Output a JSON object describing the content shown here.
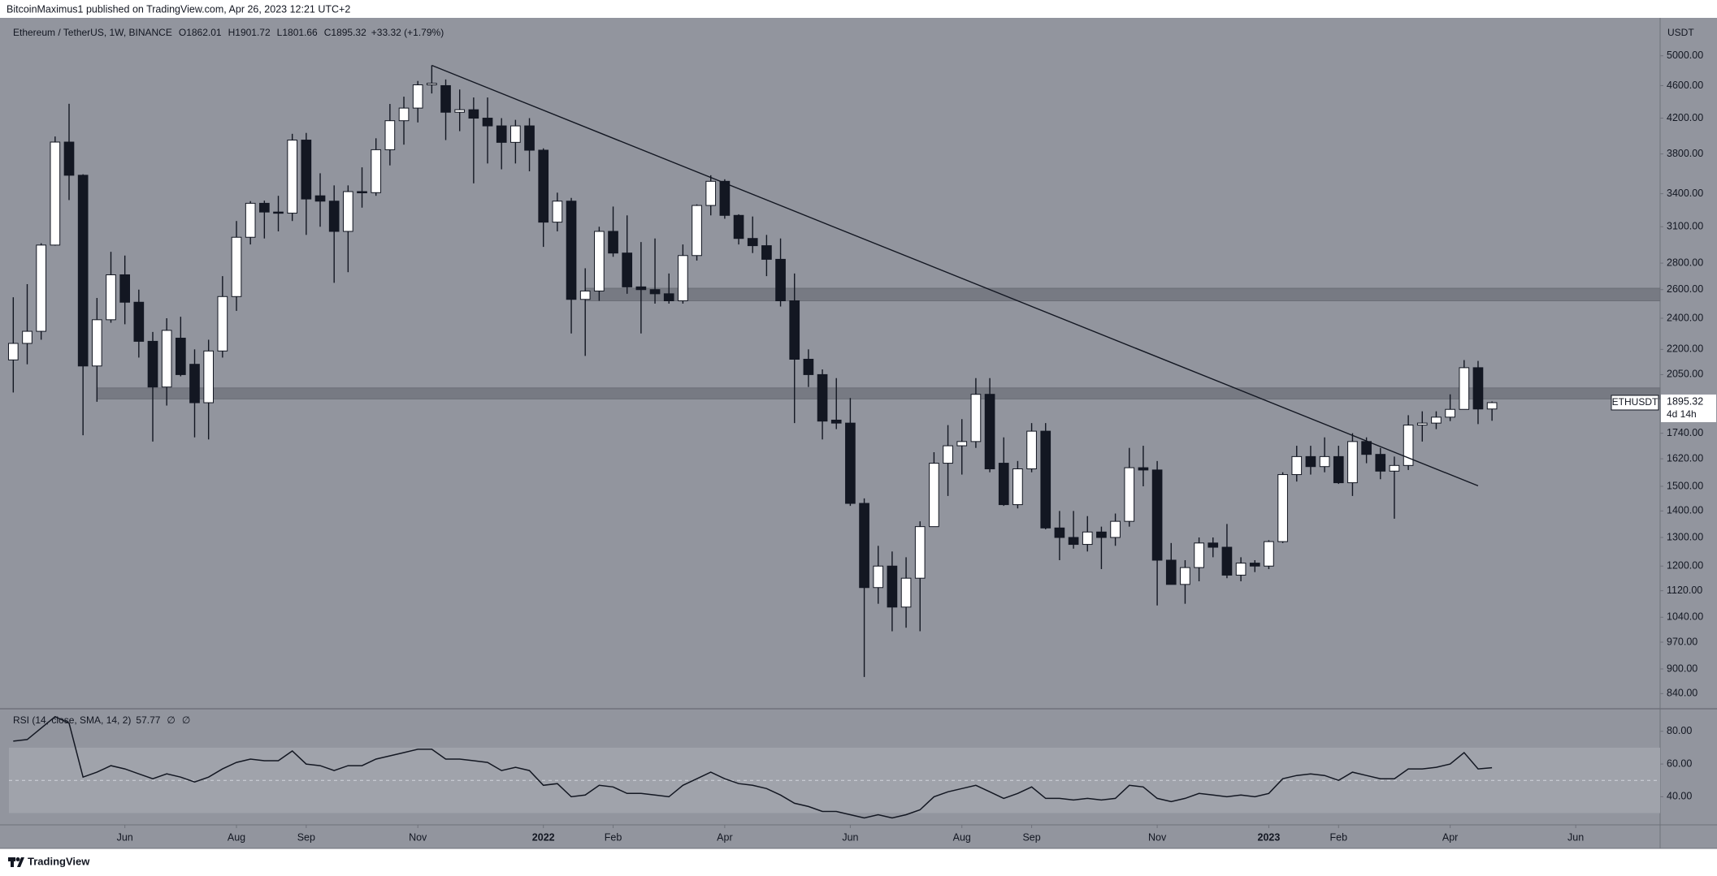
{
  "header": {
    "published": "BitcoinMaximus1 published on TradingView.com, Apr 26, 2023 12:21 UTC+2"
  },
  "footer": {
    "brand": "TradingView"
  },
  "chart_data": [
    {
      "type": "candlestick",
      "title": "Ethereum / TetherUS, 1W, BINANCE",
      "ohlc_labels": [
        "O",
        "H",
        "L",
        "C"
      ],
      "change": "+33.32 (+1.79%)",
      "currency": "USDT",
      "symbol": "ETHUSDT",
      "countdown": "4d 14h",
      "log_scale": true,
      "grid": false,
      "up_color": "#ffffff",
      "down_color": "#131722",
      "open": [
        2136,
        2237,
        2314,
        2945,
        3928,
        3580,
        2100,
        2390,
        2710,
        2510,
        2250,
        1980,
        2270,
        2110,
        1895,
        2190,
        2550,
        3010,
        3310,
        3230,
        3220,
        3950,
        3380,
        3330,
        3060,
        3420,
        3410,
        3845,
        4170,
        4320,
        4610,
        4600,
        4270,
        4300,
        4200,
        4110,
        3925,
        4110,
        3840,
        3140,
        3330,
        2530,
        2590,
        3060,
        2880,
        2620,
        2600,
        2570,
        2520,
        2860,
        3290,
        3520,
        3200,
        3000,
        2940,
        2830,
        2520,
        2140,
        2050,
        1805,
        1790,
        1430,
        1130,
        1200,
        1070,
        1160,
        1340,
        1600,
        1680,
        1700,
        1940,
        1600,
        1425,
        1575,
        1750,
        1335,
        1300,
        1275,
        1320,
        1300,
        1360,
        1580,
        1570,
        1220,
        1140,
        1195,
        1280,
        1265,
        1170,
        1210,
        1200,
        1285,
        1550,
        1630,
        1585,
        1630,
        1515,
        1700,
        1640,
        1565,
        1590,
        1780,
        1790,
        1820,
        1860,
        2090,
        1862.01
      ],
      "high": [
        2545,
        2640,
        2960,
        3990,
        4372,
        3590,
        2540,
        2890,
        2860,
        2600,
        2310,
        2400,
        2410,
        2200,
        2260,
        2700,
        3150,
        3330,
        3335,
        3380,
        4020,
        4030,
        3600,
        3480,
        3480,
        3660,
        3970,
        4370,
        4460,
        4660,
        4868,
        4680,
        4550,
        4450,
        4450,
        4200,
        4180,
        4200,
        3860,
        3410,
        3360,
        2760,
        3100,
        3280,
        3200,
        2970,
        3000,
        2720,
        2950,
        3300,
        3580,
        3540,
        3210,
        3190,
        3030,
        3000,
        2720,
        2200,
        2080,
        2030,
        1920,
        1450,
        1270,
        1250,
        1230,
        1360,
        1650,
        1780,
        1810,
        2030,
        2030,
        1720,
        1610,
        1790,
        1790,
        1400,
        1400,
        1380,
        1340,
        1390,
        1670,
        1680,
        1610,
        1280,
        1220,
        1300,
        1300,
        1350,
        1230,
        1220,
        1290,
        1560,
        1680,
        1680,
        1720,
        1680,
        1740,
        1720,
        1670,
        1630,
        1830,
        1850,
        1850,
        1940,
        2135,
        2130,
        1901.72
      ],
      "low": [
        1950,
        2110,
        2260,
        2940,
        3340,
        1730,
        1900,
        2370,
        2360,
        2150,
        1700,
        1880,
        2040,
        1720,
        1710,
        2150,
        2450,
        2950,
        3000,
        3060,
        3150,
        3030,
        3100,
        2650,
        2730,
        3270,
        3380,
        3680,
        3900,
        4150,
        4500,
        3950,
        4050,
        3500,
        3700,
        3640,
        3700,
        3620,
        2930,
        3060,
        2300,
        2160,
        2520,
        2850,
        2570,
        2300,
        2500,
        2500,
        2500,
        2820,
        3200,
        3170,
        2950,
        2880,
        2700,
        2480,
        1790,
        1980,
        1710,
        1760,
        1420,
        880,
        1080,
        1000,
        1010,
        1000,
        1340,
        1460,
        1550,
        1670,
        1560,
        1420,
        1410,
        1560,
        1330,
        1220,
        1260,
        1250,
        1190,
        1270,
        1340,
        1500,
        1075,
        1150,
        1080,
        1150,
        1230,
        1160,
        1150,
        1180,
        1190,
        1280,
        1520,
        1550,
        1560,
        1510,
        1460,
        1600,
        1530,
        1370,
        1570,
        1700,
        1760,
        1800,
        1860,
        1785,
        1801.66
      ],
      "close": [
        2237,
        2314,
        2945,
        3928,
        3580,
        2100,
        2390,
        2710,
        2510,
        2250,
        1980,
        2320,
        2050,
        1895,
        2190,
        2550,
        3010,
        3310,
        3230,
        3220,
        3950,
        3350,
        3330,
        3060,
        3420,
        3410,
        3845,
        4170,
        4320,
        4610,
        4630,
        4270,
        4300,
        4200,
        4110,
        3925,
        4110,
        3840,
        3140,
        3330,
        2530,
        2590,
        3060,
        2880,
        2620,
        2600,
        2570,
        2520,
        2860,
        3290,
        3520,
        3200,
        3000,
        2940,
        2830,
        2520,
        2140,
        2050,
        1800,
        1790,
        1430,
        1130,
        1200,
        1070,
        1160,
        1340,
        1600,
        1680,
        1700,
        1940,
        1575,
        1425,
        1575,
        1750,
        1335,
        1300,
        1275,
        1320,
        1300,
        1360,
        1580,
        1570,
        1220,
        1140,
        1195,
        1280,
        1265,
        1170,
        1210,
        1200,
        1285,
        1550,
        1630,
        1585,
        1630,
        1515,
        1700,
        1640,
        1565,
        1590,
        1780,
        1790,
        1820,
        1860,
        2090,
        1862.01,
        1895.32
      ],
      "zones": [
        {
          "low": 2520,
          "high": 2610,
          "start": 41
        },
        {
          "low": 1915,
          "high": 1975,
          "start": 6
        }
      ],
      "trendline": {
        "start": [
          30,
          4868
        ],
        "end": [
          105,
          1502
        ]
      },
      "xlim": [
        -0.31,
        118.05
      ],
      "xticks": [
        {
          "value": 8,
          "label": "Jun"
        },
        {
          "value": 16,
          "label": "Aug"
        },
        {
          "value": 21,
          "label": "Sep"
        },
        {
          "value": 29,
          "label": "Nov"
        },
        {
          "value": 38,
          "label": "2022"
        },
        {
          "value": 43,
          "label": "Feb"
        },
        {
          "value": 51,
          "label": "Apr"
        },
        {
          "value": 60,
          "label": "Jun"
        },
        {
          "value": 68,
          "label": "Aug"
        },
        {
          "value": 73,
          "label": "Sep"
        },
        {
          "value": 82,
          "label": "Nov"
        },
        {
          "value": 90,
          "label": "2023"
        },
        {
          "value": 95,
          "label": "Feb"
        },
        {
          "value": 103,
          "label": "Apr"
        },
        {
          "value": 112,
          "label": "Jun"
        }
      ],
      "ylim": [
        807,
        5497
      ],
      "yticks": [
        {
          "value": 5000,
          "label": "5000.00"
        },
        {
          "value": 4600,
          "label": "4600.00"
        },
        {
          "value": 4200,
          "label": "4200.00"
        },
        {
          "value": 3800,
          "label": "3800.00"
        },
        {
          "value": 3400,
          "label": "3400.00"
        },
        {
          "value": 3100,
          "label": "3100.00"
        },
        {
          "value": 2800,
          "label": "2800.00"
        },
        {
          "value": 2600,
          "label": "2600.00"
        },
        {
          "value": 2400,
          "label": "2400.00"
        },
        {
          "value": 2200,
          "label": "2200.00"
        },
        {
          "value": 2050,
          "label": "2050.00"
        },
        {
          "value": 1740,
          "label": "1740.00"
        },
        {
          "value": 1620,
          "label": "1620.00"
        },
        {
          "value": 1500,
          "label": "1500.00"
        },
        {
          "value": 1400,
          "label": "1400.00"
        },
        {
          "value": 1300,
          "label": "1300.00"
        },
        {
          "value": 1200,
          "label": "1200.00"
        },
        {
          "value": 1120,
          "label": "1120.00"
        },
        {
          "value": 1040,
          "label": "1040.00"
        },
        {
          "value": 970,
          "label": "970.00"
        },
        {
          "value": 900,
          "label": "900.00"
        },
        {
          "value": 840,
          "label": "840.00"
        }
      ]
    },
    {
      "type": "line",
      "title": "RSI (14, close, SMA, 14, 2)",
      "na_labels": [
        "∅",
        "∅"
      ],
      "color": "#131722",
      "band": [
        30,
        70
      ],
      "midline": 50,
      "values": [
        74,
        75,
        82,
        89,
        85,
        52,
        55,
        59,
        57,
        54,
        51,
        54,
        52,
        49,
        52,
        57,
        61,
        63,
        62,
        62,
        68,
        60,
        59,
        56,
        59,
        59,
        63,
        65,
        67,
        69,
        69,
        63,
        63,
        62,
        61,
        56,
        58,
        56,
        47,
        48,
        40,
        41,
        47,
        46,
        42,
        42,
        41,
        40,
        47,
        51,
        55,
        51,
        48,
        47,
        45,
        41,
        36,
        34,
        31,
        31,
        29,
        27,
        29,
        27,
        29,
        32,
        40,
        43,
        45,
        47,
        43,
        39,
        42,
        46,
        39,
        39,
        38,
        39,
        38,
        39,
        47,
        46,
        39,
        37,
        39,
        42,
        41,
        40,
        41,
        40,
        42,
        51,
        53,
        54,
        53,
        50,
        55,
        53,
        51,
        51,
        57,
        57,
        58,
        60,
        67,
        57,
        57.77
      ],
      "ylim": [
        23.3,
        93.3
      ],
      "yticks": [
        {
          "value": 80,
          "label": "80.00"
        },
        {
          "value": 60,
          "label": "60.00"
        },
        {
          "value": 40,
          "label": "40.00"
        }
      ]
    }
  ]
}
